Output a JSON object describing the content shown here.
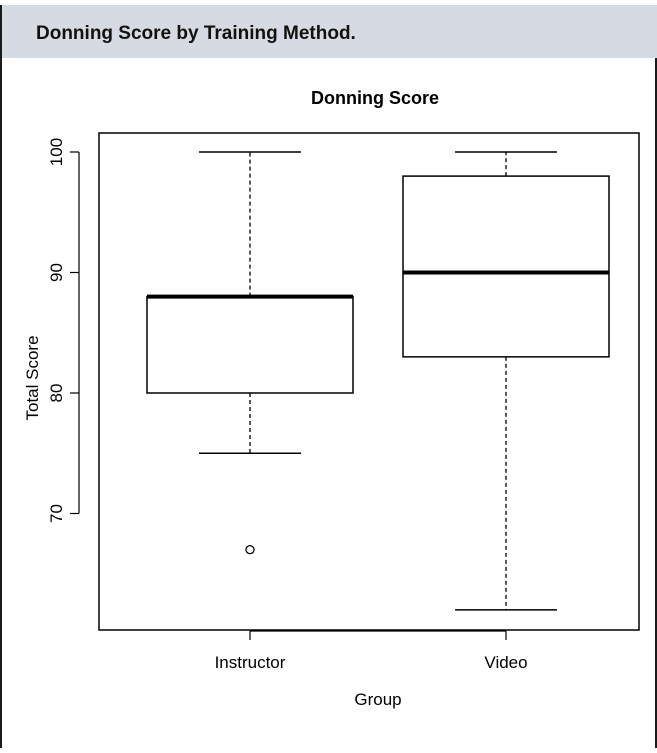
{
  "caption": {
    "title": "Donning Score by Training Method."
  },
  "chart_data": {
    "type": "boxplot",
    "title": "Donning Score",
    "xlabel": "Group",
    "ylabel": "Total Score",
    "categories": [
      "Instructor",
      "Video"
    ],
    "yticks": [
      70,
      80,
      90,
      100
    ],
    "ylim": [
      60.5,
      101
    ],
    "boxes": [
      {
        "name": "Instructor",
        "whisker_low": 75,
        "q1": 80,
        "median": 88,
        "q3": 88,
        "whisker_high": 100,
        "outliers": [
          67
        ]
      },
      {
        "name": "Video",
        "whisker_low": 62,
        "q1": 83,
        "median": 90,
        "q3": 98,
        "whisker_high": 100,
        "outliers": []
      }
    ],
    "grid": false,
    "colors": {
      "box_fill": "#ffffff",
      "stroke": "#000000"
    }
  }
}
